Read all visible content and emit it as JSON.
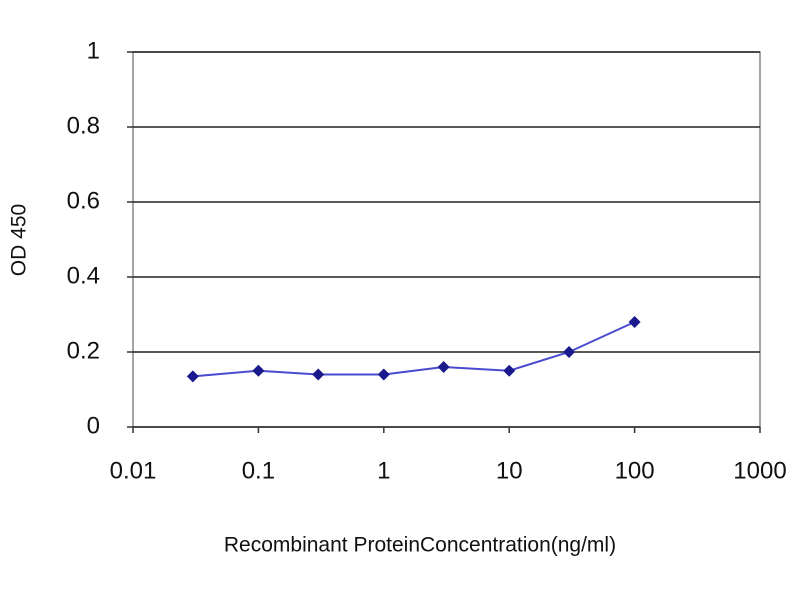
{
  "chart_data": {
    "type": "line",
    "xlabel": "Recombinant ProteinConcentration(ng/ml)",
    "ylabel": "OD 450",
    "x": [
      0.03,
      0.1,
      0.3,
      1,
      3,
      10,
      30,
      100
    ],
    "values": [
      0.135,
      0.15,
      0.14,
      0.14,
      0.16,
      0.15,
      0.2,
      0.28
    ],
    "color": "#1a1a8c",
    "xscale": "log",
    "xlim": [
      0.01,
      1000
    ],
    "xticks": [
      0.01,
      0.1,
      1,
      10,
      100,
      1000
    ],
    "ylim": [
      0,
      1
    ],
    "yticks": [
      0,
      0.2,
      0.4,
      0.6,
      0.8,
      1
    ],
    "grid": true
  }
}
